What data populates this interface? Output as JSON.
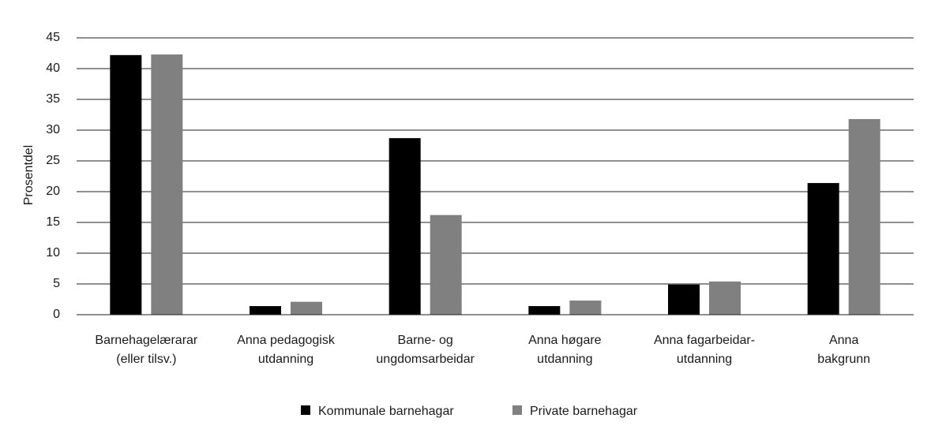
{
  "chart_data": {
    "type": "bar",
    "title": "",
    "xlabel": "",
    "ylabel": "Prosentdel",
    "ylim": [
      0,
      45
    ],
    "yticks": [
      0,
      5,
      10,
      15,
      20,
      25,
      30,
      35,
      40,
      45
    ],
    "grid": true,
    "legend_position": "bottom",
    "categories": [
      [
        "Barnehagelærarar",
        "(eller tilsv.)"
      ],
      [
        "Anna pedagogisk",
        "utdanning"
      ],
      [
        "Barne- og",
        "ungdomsarbeidar"
      ],
      [
        "Anna høgare",
        "utdanning"
      ],
      [
        "Anna fagarbeidar-",
        "utdanning"
      ],
      [
        "Anna",
        "bakgrunn"
      ]
    ],
    "series": [
      {
        "name": "Kommunale barnehagar",
        "color": "#000000",
        "values": [
          42.2,
          1.4,
          28.7,
          1.4,
          4.9,
          21.4
        ]
      },
      {
        "name": "Private barnehagar",
        "color": "#808080",
        "values": [
          42.3,
          2.1,
          16.2,
          2.3,
          5.4,
          31.8
        ]
      }
    ]
  }
}
